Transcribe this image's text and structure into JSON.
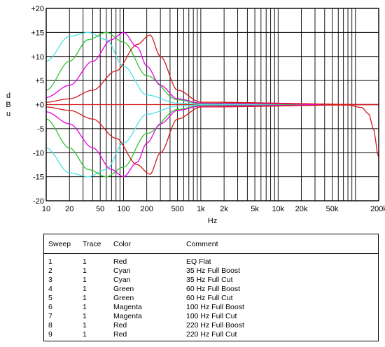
{
  "chart_data": {
    "type": "line",
    "xscale": "log",
    "xlim": [
      10,
      200000
    ],
    "ylim": [
      -20,
      20
    ],
    "xlabel": "Hz",
    "ylabel": "dBu",
    "ylabel_letters": [
      "d",
      "B",
      "u"
    ],
    "xticks": [
      {
        "v": 10,
        "t": "10"
      },
      {
        "v": 20,
        "t": "20"
      },
      {
        "v": 50,
        "t": "50"
      },
      {
        "v": 100,
        "t": "100"
      },
      {
        "v": 200,
        "t": "200"
      },
      {
        "v": 500,
        "t": "500"
      },
      {
        "v": 1000,
        "t": "1k"
      },
      {
        "v": 2000,
        "t": "2k"
      },
      {
        "v": 5000,
        "t": "5k"
      },
      {
        "v": 10000,
        "t": "10k"
      },
      {
        "v": 20000,
        "t": "20k"
      },
      {
        "v": 50000,
        "t": "50k"
      },
      {
        "v": 200000,
        "t": "200k"
      }
    ],
    "yticks": [
      {
        "v": 20,
        "t": "+20"
      },
      {
        "v": 15,
        "t": "+15"
      },
      {
        "v": 10,
        "t": "+10"
      },
      {
        "v": 5,
        "t": "+5"
      },
      {
        "v": 0,
        "t": "+0"
      },
      {
        "v": -5,
        "t": "-5"
      },
      {
        "v": -10,
        "t": "-10"
      },
      {
        "v": -15,
        "t": "-15"
      },
      {
        "v": -20,
        "t": "-20"
      }
    ],
    "grid": true,
    "series": [
      {
        "color": "#d81818",
        "x": [
          10,
          1000,
          20000,
          80000,
          120000,
          150000,
          170000,
          200000
        ],
        "y": [
          0,
          0,
          0,
          -0.1,
          -0.6,
          -2,
          -5,
          -11
        ]
      },
      {
        "color": "#4fe0e4",
        "x": [
          10,
          20,
          35,
          60,
          100,
          200,
          500,
          1000,
          200000
        ],
        "y": [
          9,
          14.2,
          15,
          13.5,
          8,
          2,
          0.3,
          0.1,
          0
        ]
      },
      {
        "color": "#4fe0e4",
        "x": [
          10,
          20,
          35,
          60,
          100,
          200,
          500,
          1000,
          200000
        ],
        "y": [
          -9,
          -14.2,
          -15,
          -13.5,
          -8,
          -2,
          -0.3,
          -0.1,
          0
        ]
      },
      {
        "color": "#2fc42f",
        "x": [
          10,
          20,
          35,
          60,
          100,
          200,
          500,
          1000,
          200000
        ],
        "y": [
          3,
          9,
          13.5,
          15,
          13,
          6,
          1,
          0.2,
          0
        ]
      },
      {
        "color": "#2fc42f",
        "x": [
          10,
          20,
          35,
          60,
          100,
          200,
          500,
          1000,
          200000
        ],
        "y": [
          -3,
          -9,
          -13.5,
          -15,
          -13,
          -6,
          -1,
          -0.2,
          0
        ]
      },
      {
        "color": "#e600e6",
        "x": [
          10,
          20,
          40,
          70,
          100,
          150,
          200,
          300,
          500,
          1000,
          200000
        ],
        "y": [
          1.5,
          4,
          9,
          13.5,
          15,
          12,
          8,
          4,
          1.2,
          0.3,
          0
        ]
      },
      {
        "color": "#e600e6",
        "x": [
          10,
          20,
          40,
          70,
          100,
          150,
          200,
          300,
          500,
          1000,
          200000
        ],
        "y": [
          -1.5,
          -4,
          -9,
          -13.5,
          -15,
          -12,
          -8,
          -4,
          -1.2,
          -0.3,
          0
        ]
      },
      {
        "color": "#d81818",
        "x": [
          10,
          20,
          40,
          80,
          150,
          220,
          300,
          500,
          1000,
          200000
        ],
        "y": [
          0.5,
          1.2,
          3,
          7,
          12.5,
          14.5,
          10,
          3,
          0.5,
          0
        ]
      },
      {
        "color": "#d81818",
        "x": [
          10,
          20,
          40,
          80,
          150,
          220,
          300,
          500,
          1000,
          200000
        ],
        "y": [
          -0.5,
          -1.2,
          -3,
          -7,
          -12.5,
          -14.5,
          -10,
          -3,
          -0.5,
          0
        ]
      }
    ]
  },
  "legend": {
    "headers": [
      "Sweep",
      "Trace",
      "Color",
      "Comment"
    ],
    "rows": [
      [
        "1",
        "1",
        "Red",
        "EQ Flat"
      ],
      [
        "2",
        "1",
        "Cyan",
        "35 Hz Full Boost"
      ],
      [
        "3",
        "1",
        "Cyan",
        "35 Hz Full Cut"
      ],
      [
        "4",
        "1",
        "Green",
        "60 Hz Full Boost"
      ],
      [
        "5",
        "1",
        "Green",
        "60 Hz Full Cut"
      ],
      [
        "6",
        "1",
        "Magenta",
        "100 Hz Full Boost"
      ],
      [
        "7",
        "1",
        "Magenta",
        "100 Hz Full Cut"
      ],
      [
        "8",
        "1",
        "Red",
        "220 Hz Full Boost"
      ],
      [
        "9",
        "1",
        "Red",
        "220 Hz Full Cut"
      ]
    ]
  }
}
